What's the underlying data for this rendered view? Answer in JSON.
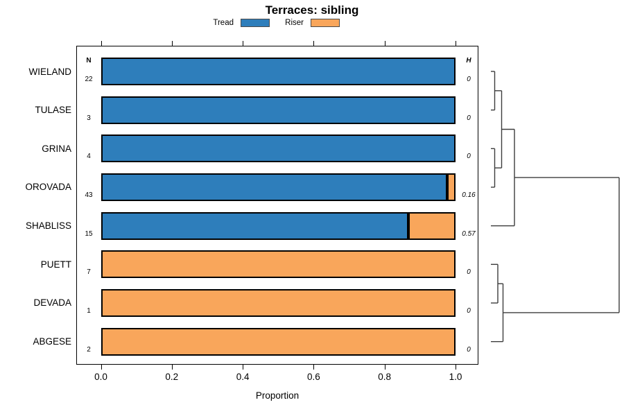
{
  "title": "Terraces: sibling",
  "legend": {
    "items": [
      {
        "label": "Tread",
        "color": "#2E7EBB"
      },
      {
        "label": "Riser",
        "color": "#F9A65B"
      }
    ]
  },
  "columns": {
    "n_header": "N",
    "h_header": "H"
  },
  "axis": {
    "label": "Proportion",
    "ticks": [
      "0.0",
      "0.2",
      "0.4",
      "0.6",
      "0.8",
      "1.0"
    ]
  },
  "chart_data": {
    "type": "bar",
    "stacked": true,
    "orientation": "horizontal",
    "title": "Terraces: sibling",
    "xlabel": "Proportion",
    "xlim": [
      0,
      1
    ],
    "x_tick_values": [
      0,
      0.2,
      0.4,
      0.6,
      0.8,
      1.0
    ],
    "categories": [
      "WIELAND",
      "TULASE",
      "GRINA",
      "OROVADA",
      "SHABLISS",
      "PUETT",
      "DEVADA",
      "ABGESE"
    ],
    "n_values": [
      22,
      3,
      4,
      43,
      15,
      7,
      1,
      2
    ],
    "h_values": [
      "0",
      "0",
      "0",
      "0.16",
      "0.57",
      "0",
      "0",
      "0"
    ],
    "series": [
      {
        "name": "Tread",
        "color": "#2E7EBB",
        "values": [
          1.0,
          1.0,
          1.0,
          0.977,
          0.867,
          0,
          0,
          0
        ]
      },
      {
        "name": "Riser",
        "color": "#F9A65B",
        "values": [
          0,
          0,
          0,
          0.023,
          0.133,
          1.0,
          1.0,
          1.0
        ]
      }
    ],
    "legend_position": "top",
    "grid": false,
    "dendrogram": {
      "leaf_order": [
        "WIELAND",
        "TULASE",
        "GRINA",
        "OROVADA",
        "SHABLISS",
        "PUETT",
        "DEVADA",
        "ABGESE"
      ],
      "structure": "(((WIELAND,TULASE),(GRINA,OROVADA)),SHABLISS),((PUETT,DEVADA),ABGESE) joined at root",
      "segments": [
        [
          18,
          0,
          23.5,
          0
        ],
        [
          18,
          1,
          23.5,
          1
        ],
        [
          23.5,
          0,
          23.5,
          1
        ],
        [
          18,
          2,
          23.5,
          2
        ],
        [
          18,
          3,
          23.5,
          3
        ],
        [
          23.5,
          2,
          23.5,
          3
        ],
        [
          23.5,
          0.5,
          33.5,
          0.5
        ],
        [
          23.5,
          2.5,
          33.5,
          2.5
        ],
        [
          33.5,
          0.5,
          33.5,
          2.5
        ],
        [
          33.5,
          1.5,
          52,
          1.5
        ],
        [
          18,
          4,
          52,
          4
        ],
        [
          52,
          1.5,
          52,
          4
        ],
        [
          52,
          2.75,
          203,
          2.75
        ],
        [
          18,
          5,
          28,
          5
        ],
        [
          18,
          6,
          28,
          6
        ],
        [
          28,
          5,
          28,
          6
        ],
        [
          28,
          5.5,
          35.5,
          5.5
        ],
        [
          18,
          7,
          35.5,
          7
        ],
        [
          35.5,
          5.5,
          35.5,
          7
        ],
        [
          35.5,
          6.25,
          203,
          6.25
        ],
        [
          203,
          2.75,
          203,
          6.25
        ]
      ]
    }
  }
}
